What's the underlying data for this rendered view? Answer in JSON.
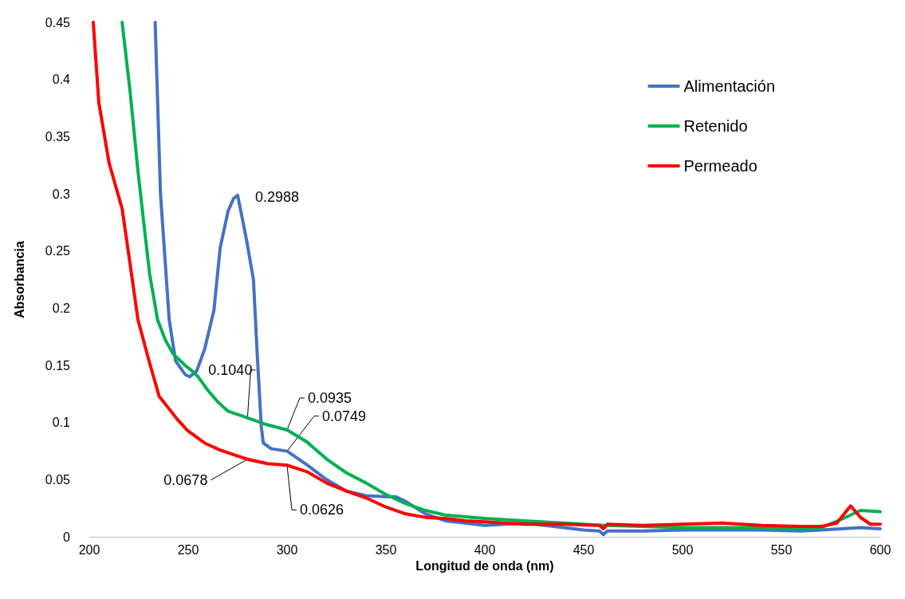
{
  "chart_data": {
    "type": "line",
    "xlabel": "Longitud de onda (nm)",
    "ylabel": "Absorbancia",
    "xlim": [
      200,
      600
    ],
    "xticks": [
      200,
      250,
      300,
      350,
      400,
      450,
      500,
      550,
      600
    ],
    "ylim": [
      0,
      0.45
    ],
    "yticks": [
      0,
      0.05,
      0.1,
      0.15,
      0.2,
      0.25,
      0.3,
      0.35,
      0.4,
      0.45
    ],
    "grid": false,
    "legend": "top right",
    "marker": "none",
    "line_style": "solid",
    "series": [
      {
        "name": "Alimentación",
        "color": "#4472c4",
        "x": [
          233.3,
          236,
          240.4,
          243.6,
          248.4,
          250.7,
          254.3,
          258.3,
          263,
          266.2,
          270.2,
          273,
          275,
          278,
          280,
          283,
          285,
          287,
          288,
          292,
          300,
          310,
          320,
          330,
          340,
          350,
          355,
          360,
          370,
          380,
          390,
          400,
          420,
          440,
          450,
          458,
          460,
          462,
          480,
          500,
          520,
          540,
          560,
          570,
          580,
          590,
          600
        ],
        "values": [
          0.45,
          0.3,
          0.19,
          0.154,
          0.142,
          0.14,
          0.145,
          0.164,
          0.198,
          0.253,
          0.285,
          0.296,
          0.2988,
          0.273,
          0.255,
          0.225,
          0.157,
          0.096,
          0.082,
          0.077,
          0.0749,
          0.063,
          0.05,
          0.04,
          0.036,
          0.035,
          0.035,
          0.031,
          0.02,
          0.014,
          0.012,
          0.01,
          0.012,
          0.008,
          0.006,
          0.005,
          0.002,
          0.005,
          0.005,
          0.006,
          0.006,
          0.006,
          0.005,
          0.006,
          0.007,
          0.008,
          0.007
        ]
      },
      {
        "name": "Retenido",
        "color": "#00b050",
        "x": [
          216.6,
          220.6,
          224.6,
          228.5,
          230.5,
          234.5,
          238.5,
          242.4,
          248.4,
          252,
          255,
          260,
          265,
          270,
          280,
          290,
          300,
          310,
          320,
          330,
          340,
          350,
          360,
          370,
          380,
          400,
          420,
          440,
          460,
          480,
          500,
          540,
          560,
          570,
          580,
          590,
          600
        ],
        "values": [
          0.45,
          0.39,
          0.32,
          0.26,
          0.23,
          0.19,
          0.172,
          0.16,
          0.15,
          0.145,
          0.14,
          0.128,
          0.118,
          0.11,
          0.104,
          0.098,
          0.0935,
          0.083,
          0.068,
          0.056,
          0.047,
          0.037,
          0.029,
          0.023,
          0.019,
          0.016,
          0.014,
          0.012,
          0.01,
          0.009,
          0.008,
          0.008,
          0.007,
          0.008,
          0.015,
          0.023,
          0.022
        ]
      },
      {
        "name": "Permeado",
        "color": "#ff0000",
        "x": [
          202,
          204.8,
          210,
          216.6,
          220.6,
          224.6,
          229.7,
          235.3,
          244.4,
          249.6,
          258.3,
          266,
          280,
          290,
          300,
          310,
          320,
          330,
          340,
          350,
          360,
          370,
          380,
          390,
          400,
          420,
          440,
          458,
          460,
          462,
          480,
          500,
          520,
          540,
          560,
          570,
          578,
          585,
          590,
          595,
          600
        ],
        "values": [
          0.45,
          0.38,
          0.327,
          0.287,
          0.239,
          0.19,
          0.157,
          0.123,
          0.103,
          0.093,
          0.082,
          0.076,
          0.0678,
          0.064,
          0.0626,
          0.057,
          0.047,
          0.04,
          0.034,
          0.026,
          0.02,
          0.017,
          0.016,
          0.014,
          0.013,
          0.011,
          0.011,
          0.01,
          0.007,
          0.011,
          0.01,
          0.011,
          0.012,
          0.01,
          0.009,
          0.009,
          0.012,
          0.027,
          0.017,
          0.011,
          0.011
        ]
      }
    ],
    "annotations": [
      {
        "text": "0.2988",
        "x": 275,
        "y": 0.2988
      },
      {
        "text": "0.1040",
        "x": 280,
        "y": 0.104
      },
      {
        "text": "0.0935",
        "x": 300,
        "y": 0.0935
      },
      {
        "text": "0.0749",
        "x": 300,
        "y": 0.0749
      },
      {
        "text": "0.0678",
        "x": 280,
        "y": 0.0678
      },
      {
        "text": "0.0626",
        "x": 300,
        "y": 0.0626
      }
    ]
  }
}
